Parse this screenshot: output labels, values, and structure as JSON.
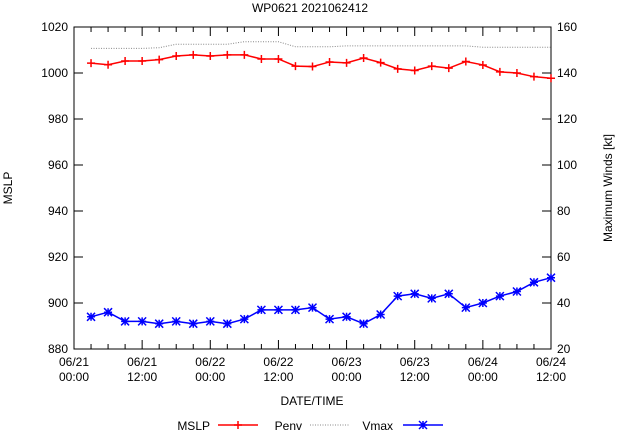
{
  "chart_data": {
    "type": "line",
    "title": "WP0621 2021062412",
    "xlabel": "DATE/TIME",
    "ylabel": "MSLP",
    "y2label": "Maximum Winds [kt]",
    "x_unit": "hours since 06/21 00:00",
    "xlim": [
      0,
      84
    ],
    "ylim": [
      880,
      1020
    ],
    "y2lim": [
      20,
      160
    ],
    "x_ticks": [
      {
        "h": 0,
        "l1": "06/21",
        "l2": "00:00"
      },
      {
        "h": 12,
        "l1": "06/21",
        "l2": "12:00"
      },
      {
        "h": 24,
        "l1": "06/22",
        "l2": "00:00"
      },
      {
        "h": 36,
        "l1": "06/22",
        "l2": "12:00"
      },
      {
        "h": 48,
        "l1": "06/23",
        "l2": "00:00"
      },
      {
        "h": 60,
        "l1": "06/23",
        "l2": "12:00"
      },
      {
        "h": 72,
        "l1": "06/24",
        "l2": "00:00"
      },
      {
        "h": 84,
        "l1": "06/24",
        "l2": "12:00"
      }
    ],
    "y_ticks": [
      "880",
      "900",
      "920",
      "940",
      "960",
      "980",
      "1000",
      "1020"
    ],
    "y2_ticks": [
      "20",
      "40",
      "60",
      "80",
      "100",
      "120",
      "140",
      "160"
    ],
    "x": [
      3,
      6,
      9,
      12,
      15,
      18,
      21,
      24,
      27,
      30,
      33,
      36,
      39,
      42,
      45,
      48,
      51,
      54,
      57,
      60,
      63,
      66,
      69,
      72,
      75,
      78,
      81,
      84
    ],
    "series": [
      {
        "name": "MSLP",
        "axis": "left",
        "color": "#ff0000",
        "marker": "plus",
        "values": [
          1004.3,
          1003.6,
          1005.2,
          1005.2,
          1005.8,
          1007.4,
          1007.9,
          1007.4,
          1007.9,
          1007.9,
          1006.1,
          1006.1,
          1003.0,
          1002.8,
          1004.8,
          1004.4,
          1006.5,
          1004.5,
          1001.8,
          1001.1,
          1003.0,
          1002.1,
          1005.0,
          1003.5,
          1000.5,
          1000.0,
          998.4,
          997.7
        ]
      },
      {
        "name": "Penv",
        "axis": "left",
        "color": "#888888",
        "marker": "none",
        "dash": true,
        "values": [
          1010.7,
          1010.7,
          1010.7,
          1010.7,
          1011.0,
          1012.5,
          1012.5,
          1012.5,
          1012.5,
          1013.6,
          1013.6,
          1013.6,
          1011.4,
          1011.4,
          1011.4,
          1011.8,
          1011.8,
          1011.8,
          1011.8,
          1011.8,
          1011.8,
          1011.8,
          1011.8,
          1011.2,
          1011.2,
          1011.2,
          1011.2,
          1011.2
        ]
      },
      {
        "name": "Vmax",
        "axis": "right",
        "color": "#0000ff",
        "marker": "star",
        "values": [
          34,
          36,
          32,
          32,
          31,
          32,
          31,
          32,
          31,
          33,
          37,
          37,
          37,
          38,
          33,
          34,
          31,
          35,
          43,
          44,
          42,
          44,
          38,
          40,
          43,
          45,
          49,
          51
        ]
      }
    ],
    "grid": false,
    "legend_position": "bottom"
  }
}
